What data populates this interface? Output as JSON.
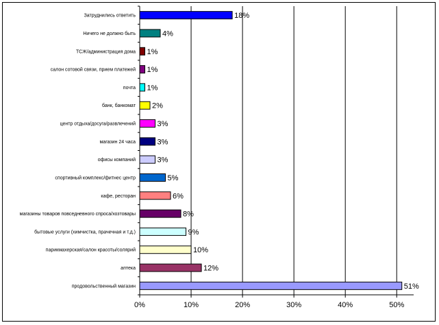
{
  "chart_data": {
    "type": "bar",
    "orientation": "horizontal",
    "categories": [
      "Затруднились ответить",
      "Ничего не должно быть",
      "ТСЖ/администрация дома",
      "салон сотовой связи, прием платежей",
      "почта",
      "банк, банкомат",
      "центр отдыха/досуга/развлечений",
      "магазин 24 часа",
      "офисы компаний",
      "спортивный комплекс/фитнес центр",
      "кафе, ресторан",
      "магазины товаров повседневного спроса/хозтовары",
      "бытовые услуги (химчистка, прачечная и т.д.)",
      "парикмахерская/салон красоты/солярий",
      "аптека",
      "продовольственный магазин"
    ],
    "values": [
      18,
      4,
      1,
      1,
      1,
      2,
      3,
      3,
      3,
      5,
      6,
      8,
      9,
      10,
      12,
      51
    ],
    "value_labels": [
      "18%",
      "4%",
      "1%",
      "1%",
      "1%",
      "2%",
      "3%",
      "3%",
      "3%",
      "5%",
      "6%",
      "8%",
      "9%",
      "10%",
      "12%",
      "51%"
    ],
    "colors": [
      "#0000ff",
      "#008080",
      "#800000",
      "#800080",
      "#00ffff",
      "#ffff00",
      "#ff00ff",
      "#000080",
      "#ccccff",
      "#0066cc",
      "#ff8080",
      "#660066",
      "#ccffff",
      "#ffffcc",
      "#993366",
      "#9999ff"
    ],
    "x_ticks": [
      "0%",
      "10%",
      "20%",
      "30%",
      "40%",
      "50%"
    ],
    "xlim": [
      0,
      53.3
    ],
    "grid": true,
    "title": "",
    "xlabel": "",
    "ylabel": ""
  }
}
